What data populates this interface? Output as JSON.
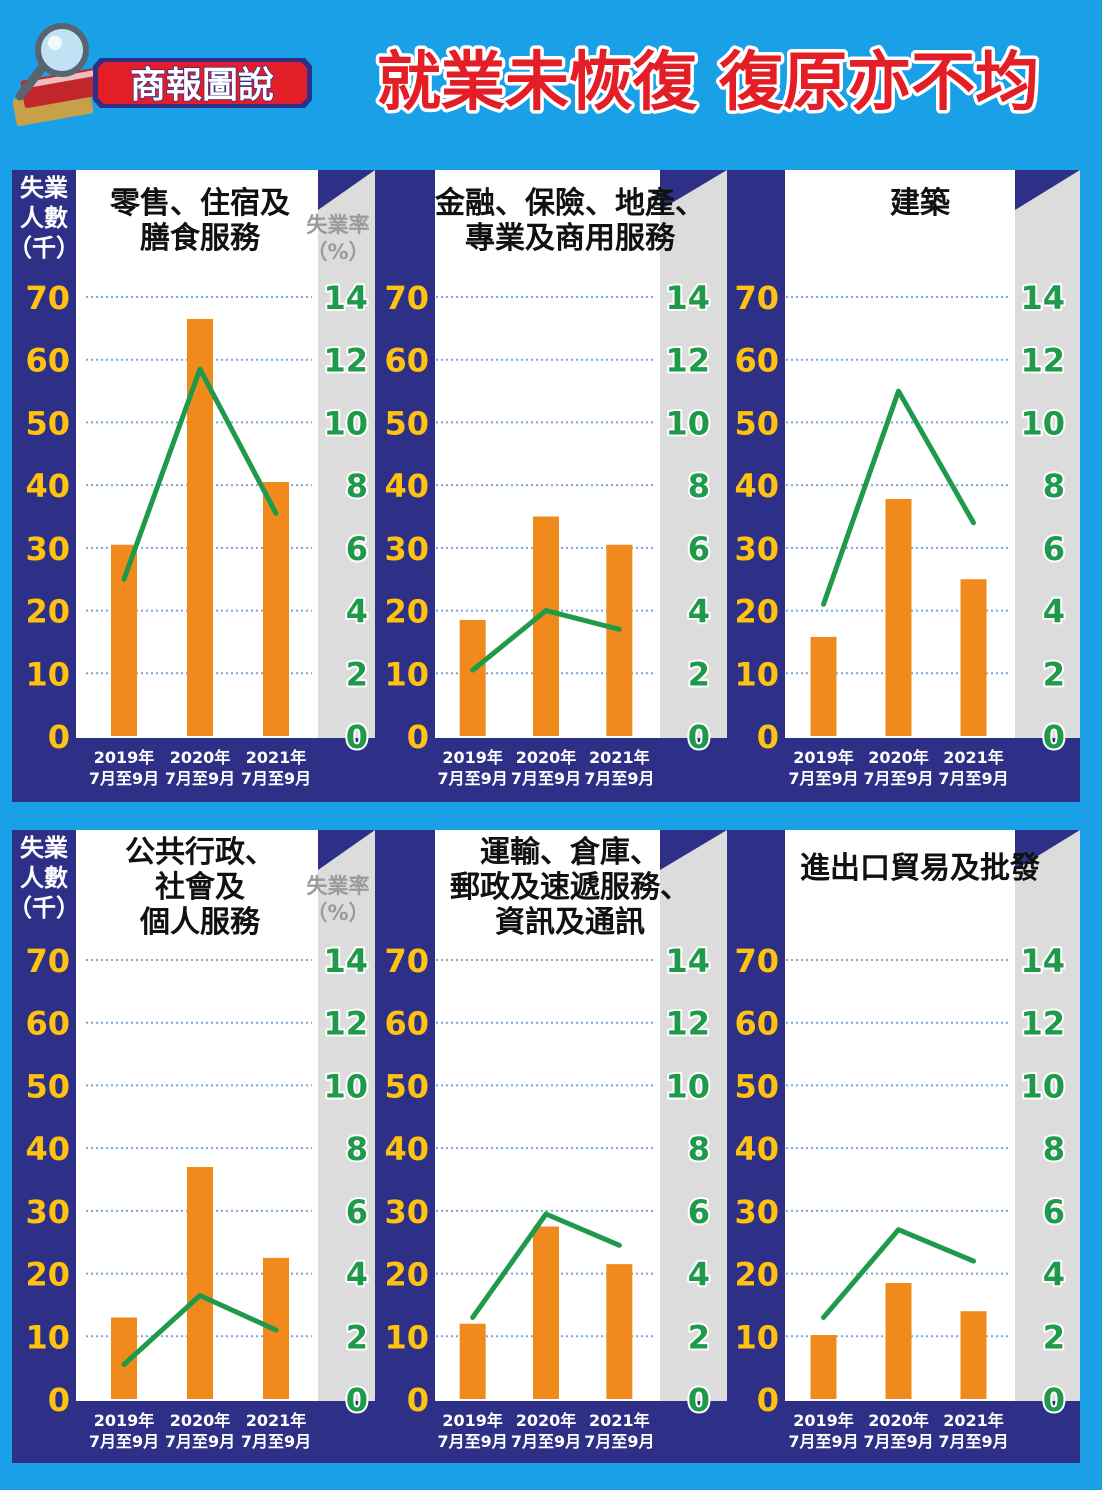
{
  "badge": "商報圖說",
  "headline": "就業未恢復 復原亦不均",
  "left_axis_label": "失業\n人數\n（千）",
  "right_axis_label": "失業率\n（%）",
  "colors": {
    "background": "#1aa0e6",
    "panel_bg": "#ffffff",
    "axis_band": "#2e3087",
    "right_band": "#dcdcdc",
    "bar": "#f08a1c",
    "line": "#1f9a4a",
    "left_tick": "#ffc20e",
    "right_tick": "#1f9a4a",
    "headline": "#e41e26"
  },
  "chart_data": [
    {
      "type": "bar+line",
      "title": "零售、住宿及\n膳食服務",
      "categories": [
        "2019年\n7月至9月",
        "2020年\n7月至9月",
        "2021年\n7月至9月"
      ],
      "bar_values": [
        30.5,
        66.5,
        40.5
      ],
      "line_values": [
        5.0,
        11.7,
        7.1
      ],
      "y_left_ticks": [
        0,
        10,
        20,
        30,
        40,
        50,
        60,
        70
      ],
      "y_right_ticks": [
        0,
        2,
        4,
        6,
        8,
        10,
        12,
        14
      ],
      "ylim_left": [
        0,
        70
      ],
      "ylim_right": [
        0,
        14
      ]
    },
    {
      "type": "bar+line",
      "title": "金融、保險、地產、\n專業及商用服務",
      "categories": [
        "2019年\n7月至9月",
        "2020年\n7月至9月",
        "2021年\n7月至9月"
      ],
      "bar_values": [
        18.5,
        35.0,
        30.5
      ],
      "line_values": [
        2.1,
        4.0,
        3.4
      ],
      "y_left_ticks": [
        0,
        10,
        20,
        30,
        40,
        50,
        60,
        70
      ],
      "y_right_ticks": [
        0,
        2,
        4,
        6,
        8,
        10,
        12,
        14
      ],
      "ylim_left": [
        0,
        70
      ],
      "ylim_right": [
        0,
        14
      ]
    },
    {
      "type": "bar+line",
      "title": "建築",
      "categories": [
        "2019年\n7月至9月",
        "2020年\n7月至9月",
        "2021年\n7月至9月"
      ],
      "bar_values": [
        15.8,
        37.8,
        25.0
      ],
      "line_values": [
        4.2,
        11.0,
        6.8
      ],
      "y_left_ticks": [
        0,
        10,
        20,
        30,
        40,
        50,
        60,
        70
      ],
      "y_right_ticks": [
        0,
        2,
        4,
        6,
        8,
        10,
        12,
        14
      ],
      "ylim_left": [
        0,
        70
      ],
      "ylim_right": [
        0,
        14
      ]
    },
    {
      "type": "bar+line",
      "title": "公共行政、\n社會及\n個人服務",
      "categories": [
        "2019年\n7月至9月",
        "2020年\n7月至9月",
        "2021年\n7月至9月"
      ],
      "bar_values": [
        13.0,
        37.0,
        22.5
      ],
      "line_values": [
        1.1,
        3.3,
        2.2
      ],
      "y_left_ticks": [
        0,
        10,
        20,
        30,
        40,
        50,
        60,
        70
      ],
      "y_right_ticks": [
        0,
        2,
        4,
        6,
        8,
        10,
        12,
        14
      ],
      "ylim_left": [
        0,
        70
      ],
      "ylim_right": [
        0,
        14
      ]
    },
    {
      "type": "bar+line",
      "title": "運輸、倉庫、\n郵政及速遞服務、\n資訊及通訊",
      "categories": [
        "2019年\n7月至9月",
        "2020年\n7月至9月",
        "2021年\n7月至9月"
      ],
      "bar_values": [
        12.0,
        27.5,
        21.5
      ],
      "line_values": [
        2.6,
        5.9,
        4.9
      ],
      "y_left_ticks": [
        0,
        10,
        20,
        30,
        40,
        50,
        60,
        70
      ],
      "y_right_ticks": [
        0,
        2,
        4,
        6,
        8,
        10,
        12,
        14
      ],
      "ylim_left": [
        0,
        70
      ],
      "ylim_right": [
        0,
        14
      ]
    },
    {
      "type": "bar+line",
      "title": "進出口貿易及批發",
      "categories": [
        "2019年\n7月至9月",
        "2020年\n7月至9月",
        "2021年\n7月至9月"
      ],
      "bar_values": [
        10.2,
        18.5,
        14.0
      ],
      "line_values": [
        2.6,
        5.4,
        4.4
      ],
      "y_left_ticks": [
        0,
        10,
        20,
        30,
        40,
        50,
        60,
        70
      ],
      "y_right_ticks": [
        0,
        2,
        4,
        6,
        8,
        10,
        12,
        14
      ],
      "ylim_left": [
        0,
        70
      ],
      "ylim_right": [
        0,
        14
      ]
    }
  ]
}
